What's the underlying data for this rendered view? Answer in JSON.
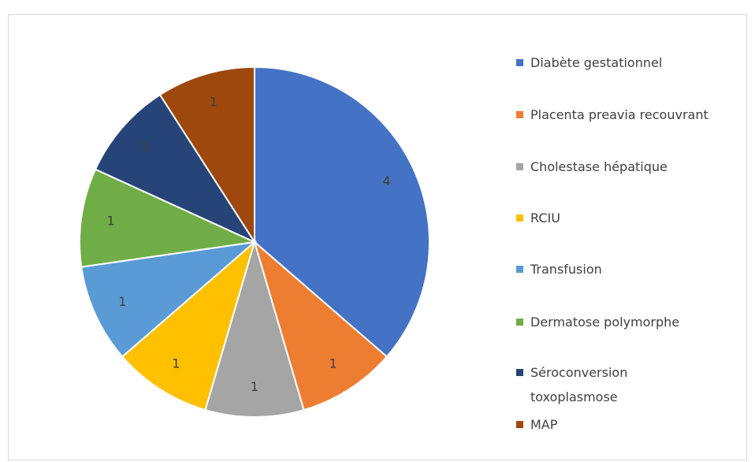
{
  "chart_data": {
    "type": "pie",
    "categories": [
      "Diabète gestationnel",
      "Placenta preavia recouvrant",
      "Cholestase hépatique",
      "RCIU",
      "Transfusion",
      "Dermatose polymorphe",
      "Séroconversion toxoplasmose",
      "MAP"
    ],
    "values": [
      4,
      1,
      1,
      1,
      1,
      1,
      1,
      1
    ],
    "colors": [
      "#4472c4",
      "#ed7d31",
      "#a5a5a5",
      "#ffc000",
      "#5b9bd5",
      "#70ad47",
      "#264478",
      "#9e480e"
    ],
    "legend": "right"
  }
}
